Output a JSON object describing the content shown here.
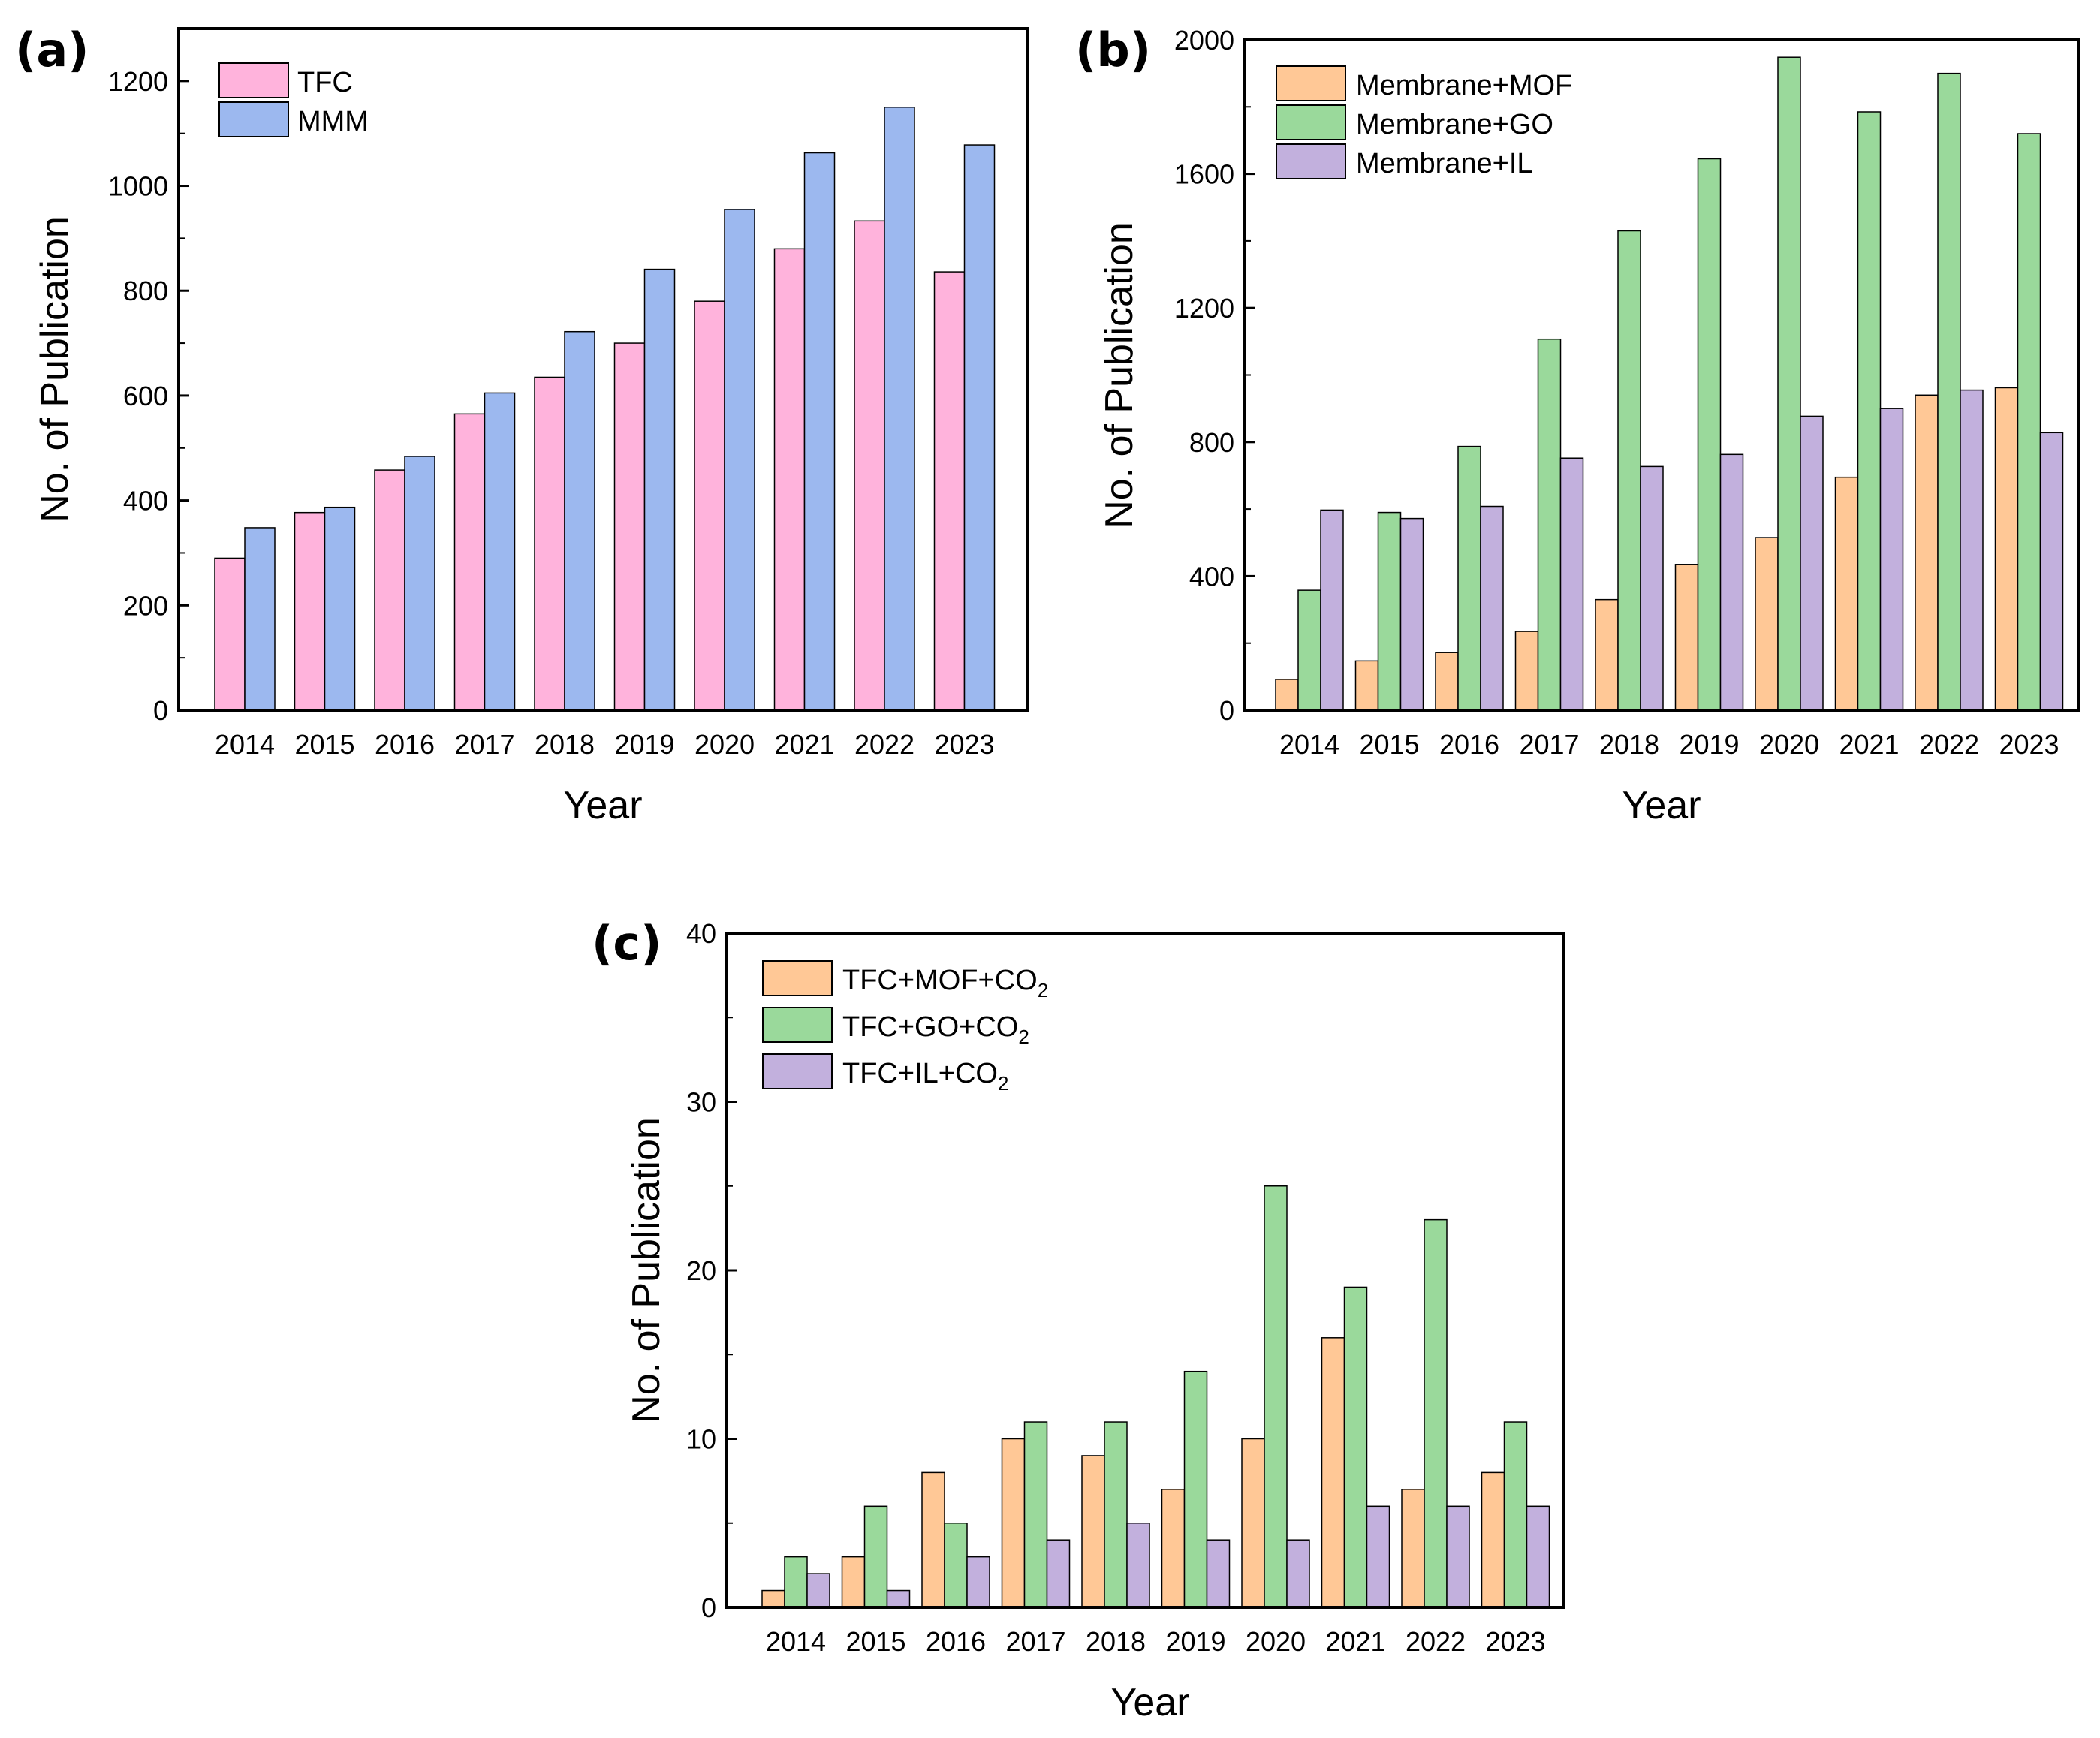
{
  "chart_data": [
    {
      "panel_label": "(a)",
      "type": "bar",
      "categories": [
        "2014",
        "2015",
        "2016",
        "2017",
        "2018",
        "2019",
        "2020",
        "2021",
        "2022",
        "2023"
      ],
      "series": [
        {
          "name": "TFC",
          "color": "#ffb3dc",
          "values": [
            290,
            377,
            458,
            565,
            635,
            700,
            780,
            880,
            933,
            836
          ]
        },
        {
          "name": "MMM",
          "color": "#9cb8ef",
          "values": [
            348,
            387,
            484,
            605,
            722,
            841,
            955,
            1063,
            1150,
            1078
          ]
        }
      ],
      "xlabel": "Year",
      "ylabel": "No. of Publication",
      "ylim": [
        0,
        1300
      ],
      "yticks": [
        0,
        200,
        400,
        600,
        800,
        1000,
        1200
      ],
      "legend_position": "top-left",
      "grid": false
    },
    {
      "panel_label": "(b)",
      "type": "bar",
      "categories": [
        "2014",
        "2015",
        "2016",
        "2017",
        "2018",
        "2019",
        "2020",
        "2021",
        "2022",
        "2023"
      ],
      "series": [
        {
          "name": "Membrane+MOF",
          "color": "#ffc896",
          "values": [
            92,
            147,
            172,
            235,
            330,
            435,
            515,
            695,
            940,
            962
          ]
        },
        {
          "name": "Membrane+GO",
          "color": "#9ad99b",
          "values": [
            358,
            590,
            787,
            1107,
            1430,
            1645,
            1948,
            1785,
            1900,
            1720
          ]
        },
        {
          "name": "Membrane+IL",
          "color": "#c2b0dd",
          "values": [
            597,
            572,
            608,
            752,
            727,
            763,
            877,
            900,
            955,
            828
          ]
        }
      ],
      "xlabel": "Year",
      "ylabel": "No. of Publication",
      "ylim": [
        0,
        2000
      ],
      "yticks": [
        0,
        400,
        800,
        1200,
        1600,
        2000
      ],
      "legend_position": "top-left",
      "grid": false
    },
    {
      "panel_label": "(c)",
      "type": "bar",
      "categories": [
        "2014",
        "2015",
        "2016",
        "2017",
        "2018",
        "2019",
        "2020",
        "2021",
        "2022",
        "2023"
      ],
      "series": [
        {
          "name": "TFC+MOF+CO",
          "subscript": "2",
          "color": "#ffc896",
          "values": [
            1,
            3,
            8,
            10,
            9,
            7,
            10,
            16,
            7,
            8
          ]
        },
        {
          "name": "TFC+GO+CO",
          "subscript": "2",
          "color": "#9ad99b",
          "values": [
            3,
            6,
            5,
            11,
            11,
            14,
            25,
            19,
            23,
            11
          ]
        },
        {
          "name": "TFC+IL+CO",
          "subscript": "2",
          "color": "#c2b0dd",
          "values": [
            2,
            1,
            3,
            4,
            5,
            4,
            4,
            6,
            6,
            6
          ]
        }
      ],
      "xlabel": "Year",
      "ylabel": "No. of Publication",
      "ylim": [
        0,
        40
      ],
      "yticks": [
        0,
        10,
        20,
        30,
        40
      ],
      "legend_position": "top-left",
      "grid": false
    }
  ]
}
